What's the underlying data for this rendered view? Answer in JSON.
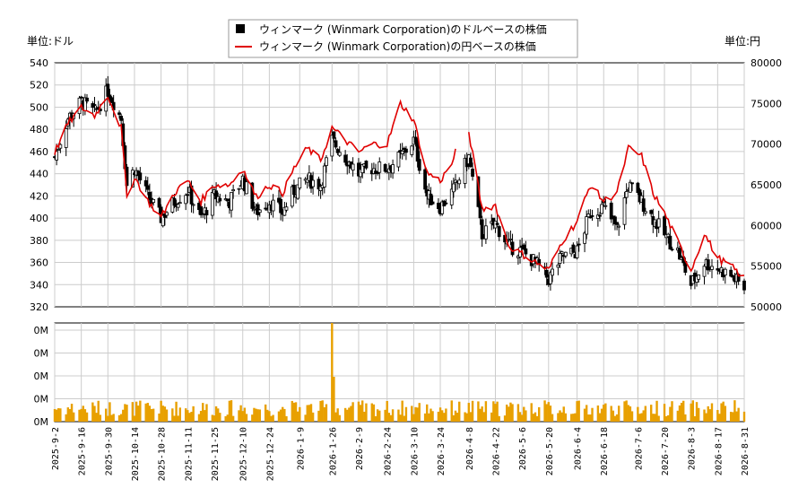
{
  "legend": {
    "item_usd": "ウィンマーク (Winmark Corporation)のドルベースの株価",
    "item_jpy": "ウィンマーク (Winmark Corporation)の円ベースの株価"
  },
  "axes": {
    "left_unit": "単位:ドル",
    "right_unit": "単位:円",
    "left_ticks": [
      "540",
      "520",
      "500",
      "480",
      "460",
      "440",
      "420",
      "400",
      "380",
      "360",
      "340",
      "320"
    ],
    "right_ticks": [
      "80000",
      "75000",
      "70000",
      "65000",
      "60000",
      "55000",
      "50000"
    ],
    "volume_ticks": [
      "0M",
      "0M",
      "0M",
      "0M",
      "0M"
    ],
    "x_ticks": [
      "2025-9-2",
      "2025-9-16",
      "2025-9-30",
      "2025-10-14",
      "2025-10-28",
      "2025-11-11",
      "2025-11-25",
      "2025-12-10",
      "2025-12-24",
      "2026-1-9",
      "2026-1-26",
      "2026-2-9",
      "2026-2-24",
      "2026-3-10",
      "2026-3-24",
      "2026-4-8",
      "2026-4-22",
      "2026-5-6",
      "2026-5-20",
      "2026-6-4",
      "2026-6-18",
      "2026-7-6",
      "2026-7-20",
      "2026-8-3",
      "2026-8-17",
      "2026-8-31"
    ]
  },
  "colors": {
    "candle": "#000000",
    "jpy_line": "#e00000",
    "volume": "#e8a000",
    "grid": "#cccccc"
  },
  "chart_data": {
    "type": "candlestick+line+bar",
    "x_start": "2025-9-2",
    "x_end": "2026-8-31",
    "usd_ylim": [
      320,
      540
    ],
    "jpy_ylim": [
      50000,
      80000
    ],
    "usd_close_keypoints": [
      [
        "2025-9-2",
        455
      ],
      [
        "2025-9-9",
        490
      ],
      [
        "2025-9-16",
        505
      ],
      [
        "2025-9-23",
        495
      ],
      [
        "2025-9-30",
        515
      ],
      [
        "2025-10-7",
        490
      ],
      [
        "2025-10-10",
        430
      ],
      [
        "2025-10-14",
        445
      ],
      [
        "2025-10-21",
        420
      ],
      [
        "2025-10-28",
        400
      ],
      [
        "2025-11-4",
        415
      ],
      [
        "2025-11-11",
        425
      ],
      [
        "2025-11-18",
        400
      ],
      [
        "2025-11-25",
        420
      ],
      [
        "2025-12-3",
        415
      ],
      [
        "2025-12-10",
        435
      ],
      [
        "2025-12-17",
        405
      ],
      [
        "2025-12-24",
        415
      ],
      [
        "2025-12-31",
        405
      ],
      [
        "2026-1-6",
        425
      ],
      [
        "2026-1-13",
        435
      ],
      [
        "2026-1-20",
        430
      ],
      [
        "2026-1-26",
        470
      ],
      [
        "2026-2-2",
        455
      ],
      [
        "2026-2-9",
        440
      ],
      [
        "2026-2-16",
        445
      ],
      [
        "2026-2-24",
        445
      ],
      [
        "2026-3-3",
        455
      ],
      [
        "2026-3-10",
        470
      ],
      [
        "2026-3-17",
        420
      ],
      [
        "2026-3-24",
        410
      ],
      [
        "2026-3-31",
        425
      ],
      [
        "2026-4-8",
        455
      ],
      [
        "2026-4-15",
        385
      ],
      [
        "2026-4-22",
        395
      ],
      [
        "2026-4-29",
        375
      ],
      [
        "2026-5-6",
        370
      ],
      [
        "2026-5-13",
        360
      ],
      [
        "2026-5-20",
        345
      ],
      [
        "2026-5-27",
        365
      ],
      [
        "2026-6-4",
        370
      ],
      [
        "2026-6-11",
        405
      ],
      [
        "2026-6-18",
        410
      ],
      [
        "2026-6-25",
        390
      ],
      [
        "2026-7-1",
        430
      ],
      [
        "2026-7-8",
        415
      ],
      [
        "2026-7-14",
        400
      ],
      [
        "2026-7-20",
        385
      ],
      [
        "2026-7-27",
        370
      ],
      [
        "2026-8-3",
        340
      ],
      [
        "2026-8-10",
        360
      ],
      [
        "2026-8-17",
        355
      ],
      [
        "2026-8-24",
        348
      ],
      [
        "2026-8-31",
        337
      ]
    ],
    "jpy_close_keypoints": [
      [
        "2025-9-2",
        69000
      ],
      [
        "2025-9-9",
        72500
      ],
      [
        "2025-9-16",
        74500
      ],
      [
        "2025-9-23",
        73500
      ],
      [
        "2025-9-30",
        76000
      ],
      [
        "2025-10-7",
        72000
      ],
      [
        "2025-10-10",
        63500
      ],
      [
        "2025-10-14",
        66000
      ],
      [
        "2025-10-21",
        63000
      ],
      [
        "2025-10-28",
        61000
      ],
      [
        "2025-11-4",
        64000
      ],
      [
        "2025-11-11",
        65500
      ],
      [
        "2025-11-18",
        63000
      ],
      [
        "2025-11-25",
        65000
      ],
      [
        "2025-12-3",
        65000
      ],
      [
        "2025-12-10",
        67000
      ],
      [
        "2025-12-17",
        63500
      ],
      [
        "2025-12-24",
        65000
      ],
      [
        "2025-12-31",
        64000
      ],
      [
        "2026-1-6",
        67000
      ],
      [
        "2026-1-13",
        69500
      ],
      [
        "2026-1-20",
        68000
      ],
      [
        "2026-1-26",
        72000
      ],
      [
        "2026-2-2",
        70500
      ],
      [
        "2026-2-9",
        69000
      ],
      [
        "2026-2-16",
        70000
      ],
      [
        "2026-2-24",
        70000
      ],
      [
        "2026-3-3",
        75000
      ],
      [
        "2026-3-10",
        73000
      ],
      [
        "2026-3-17",
        66500
      ],
      [
        "2026-3-24",
        65500
      ],
      [
        "2026-3-31",
        68000
      ],
      [
        "2026-4-1",
        69000
      ],
      [
        "2026-4-8",
        71500
      ],
      [
        "2026-4-15",
        62000
      ],
      [
        "2026-4-22",
        62500
      ],
      [
        "2026-4-29",
        57500
      ],
      [
        "2026-5-6",
        56500
      ],
      [
        "2026-5-13",
        55500
      ],
      [
        "2026-5-20",
        54500
      ],
      [
        "2026-5-27",
        58000
      ],
      [
        "2026-6-4",
        60500
      ],
      [
        "2026-6-11",
        65000
      ],
      [
        "2026-6-18",
        63000
      ],
      [
        "2026-6-25",
        64000
      ],
      [
        "2026-7-1",
        69500
      ],
      [
        "2026-7-8",
        68500
      ],
      [
        "2026-7-14",
        64000
      ],
      [
        "2026-7-20",
        61500
      ],
      [
        "2026-7-27",
        58000
      ],
      [
        "2026-8-3",
        54500
      ],
      [
        "2026-8-10",
        59000
      ],
      [
        "2026-8-17",
        56000
      ],
      [
        "2026-8-24",
        55000
      ],
      [
        "2026-8-31",
        53500
      ]
    ],
    "volume_spike_date": "2026-1-26"
  }
}
